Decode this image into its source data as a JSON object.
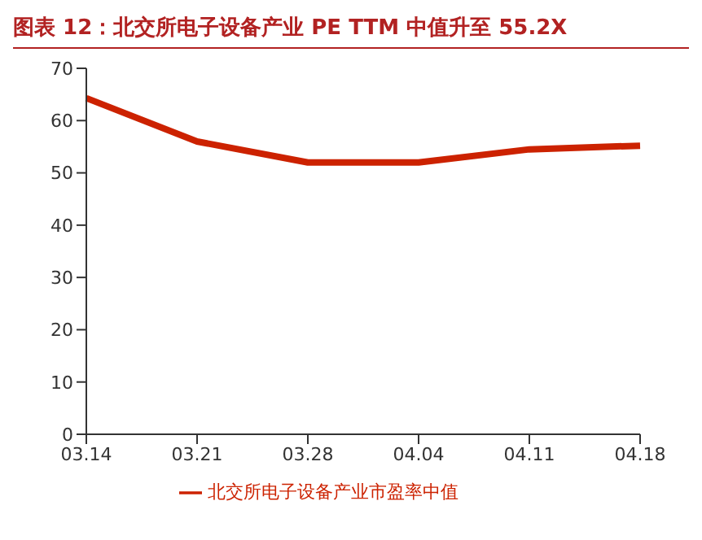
{
  "chart_data": {
    "type": "line",
    "title": "图表 12：北交所电子设备产业 PE TTM 中值升至 55.2X",
    "categories": [
      "03.14",
      "03.21",
      "03.28",
      "04.04",
      "04.11",
      "04.18"
    ],
    "series": [
      {
        "name": "北交所电子设备产业市盈率中值",
        "color": "#cc2200",
        "values": [
          64.3,
          56,
          52,
          52,
          54.5,
          55.2
        ]
      }
    ],
    "ylim": [
      0,
      70
    ],
    "yticks": [
      0,
      10,
      20,
      30,
      40,
      50,
      60,
      70
    ],
    "grid": false,
    "legend": "bottom",
    "marker": "none",
    "line_style": "solid"
  }
}
